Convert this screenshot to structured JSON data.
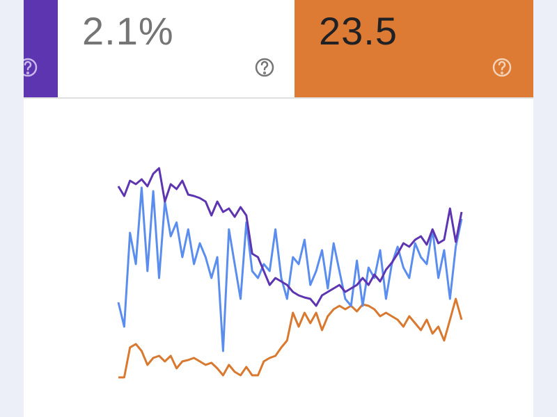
{
  "tiles": [
    {
      "value": "2.1%"
    },
    {
      "value": "23.5"
    }
  ],
  "chart_data": {
    "type": "line",
    "ylim": [
      0,
      320
    ],
    "series": [
      {
        "color": "#d9782f",
        "values": [
          7,
          7,
          50,
          55,
          45,
          25,
          35,
          38,
          30,
          38,
          20,
          30,
          32,
          35,
          30,
          25,
          28,
          20,
          10,
          25,
          15,
          10,
          22,
          10,
          10,
          30,
          35,
          38,
          50,
          60,
          100,
          80,
          100,
          85,
          100,
          75,
          95,
          105,
          110,
          105,
          110,
          102,
          112,
          110,
          105,
          95,
          100,
          95,
          90,
          80,
          95,
          85,
          75,
          90,
          70,
          80,
          60,
          90,
          120,
          90
        ]
      },
      {
        "color": "#5b8def",
        "values": [
          115,
          80,
          215,
          170,
          280,
          160,
          275,
          150,
          260,
          210,
          230,
          180,
          220,
          170,
          200,
          180,
          150,
          180,
          45,
          220,
          170,
          120,
          230,
          160,
          150,
          170,
          160,
          220,
          150,
          120,
          180,
          170,
          205,
          140,
          160,
          190,
          135,
          200,
          160,
          120,
          110,
          175,
          110,
          165,
          150,
          190,
          120,
          170,
          195,
          165,
          150,
          200,
          180,
          170,
          220,
          150,
          190,
          120,
          195,
          235
        ]
      },
      {
        "color": "#5e35b1",
        "values": [
          282,
          268,
          290,
          285,
          292,
          282,
          300,
          308,
          260,
          285,
          278,
          290,
          270,
          268,
          265,
          260,
          240,
          260,
          245,
          250,
          238,
          252,
          240,
          185,
          180,
          160,
          140,
          150,
          145,
          140,
          130,
          125,
          122,
          120,
          110,
          125,
          130,
          135,
          140,
          130,
          135,
          140,
          150,
          140,
          155,
          145,
          162,
          172,
          185,
          200,
          195,
          205,
          210,
          198,
          220,
          200,
          205,
          250,
          202,
          245
        ]
      }
    ]
  }
}
